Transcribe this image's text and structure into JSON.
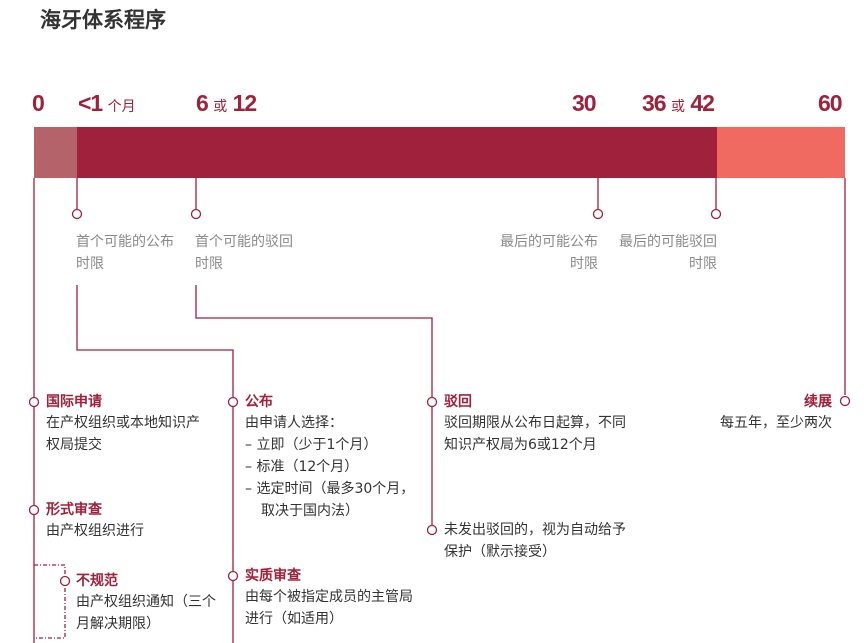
{
  "title": "海牙体系程序",
  "colors": {
    "bar_main": "#A0213C",
    "bar_start": "#B5636A",
    "bar_end": "#F06A62",
    "line": "#A0213C"
  },
  "ticks": [
    {
      "num": "0",
      "unit": ""
    },
    {
      "num": "<1",
      "unit": "个月"
    },
    {
      "num": "6",
      "mid": "或",
      "num2": "12"
    },
    {
      "num": "30"
    },
    {
      "num": "36",
      "mid": "或",
      "num2": "42"
    },
    {
      "num": "60"
    }
  ],
  "milestones": {
    "first_pub": "首个可能的公布时限",
    "first_ref": "首个可能的驳回时限",
    "last_pub": "最后的可能公布时限",
    "last_ref": "最后的可能驳回时限"
  },
  "steps": {
    "intl_app": {
      "title": "国际申请",
      "text": "在产权组织或本地知识产权局提交"
    },
    "formal": {
      "title": "形式审查",
      "text": "由产权组织进行"
    },
    "irregular": {
      "title": "不规范",
      "text": "由产权组织通知（三个月解决期限）"
    },
    "publication": {
      "title": "公布",
      "intro": "由申请人选择：",
      "options": [
        "– 立即（少于1个月）",
        "– 标准（12个月）",
        "– 选定时间（最多30个月，取决于国内法）"
      ]
    },
    "substantive": {
      "title": "实质审查",
      "text": "由每个被指定成员的主管局进行（如适用）"
    },
    "refusal": {
      "title": "驳回",
      "text": "驳回期限从公布日起算，不同知识产权局为6或12个月",
      "note": "未发出驳回的，视为自动给予保护（默示接受）"
    },
    "renewal": {
      "title": "续展",
      "text": "每五年，至少两次"
    }
  }
}
